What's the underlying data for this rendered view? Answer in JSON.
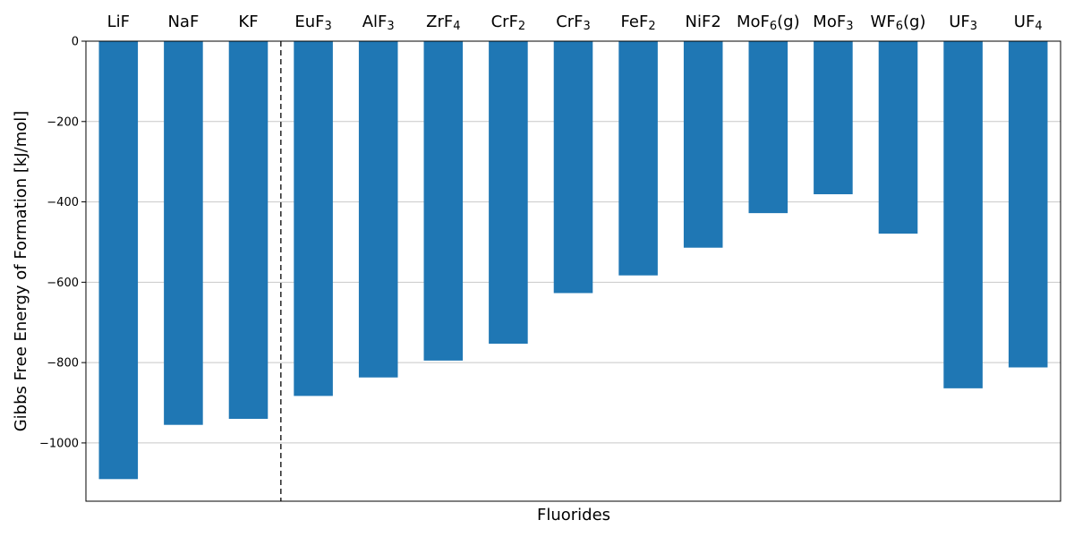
{
  "chart_data": {
    "type": "bar",
    "categories": [
      {
        "base": "LiF",
        "sub": "",
        "suffix": ""
      },
      {
        "base": "NaF",
        "sub": "",
        "suffix": ""
      },
      {
        "base": "KF",
        "sub": "",
        "suffix": ""
      },
      {
        "base": "EuF",
        "sub": "3",
        "suffix": ""
      },
      {
        "base": "AlF",
        "sub": "3",
        "suffix": ""
      },
      {
        "base": "ZrF",
        "sub": "4",
        "suffix": ""
      },
      {
        "base": "CrF",
        "sub": "2",
        "suffix": ""
      },
      {
        "base": "CrF",
        "sub": "3",
        "suffix": ""
      },
      {
        "base": "FeF",
        "sub": "2",
        "suffix": ""
      },
      {
        "base": "NiF2",
        "sub": "",
        "suffix": ""
      },
      {
        "base": "MoF",
        "sub": "6",
        "suffix": "(g)"
      },
      {
        "base": "MoF",
        "sub": "3",
        "suffix": ""
      },
      {
        "base": "WF",
        "sub": "6",
        "suffix": "(g)"
      },
      {
        "base": "UF",
        "sub": "3",
        "suffix": ""
      },
      {
        "base": "UF",
        "sub": "4",
        "suffix": ""
      }
    ],
    "values": [
      -1090,
      -955,
      -940,
      -883,
      -837,
      -795,
      -753,
      -627,
      -583,
      -514,
      -428,
      -381,
      -479,
      -864,
      -812
    ],
    "xlabel": "Fluorides",
    "ylabel": "Gibbs Free Energy of Formation [kJ/mol]",
    "ylim": [
      -1145,
      0
    ],
    "yticks": [
      0,
      -200,
      -400,
      -600,
      -800,
      -1000
    ],
    "divider_after_index": 2,
    "category_labels_position": "top",
    "grid": "horizontal",
    "bar_color": "#1f77b4",
    "divider_color": "#333333"
  }
}
